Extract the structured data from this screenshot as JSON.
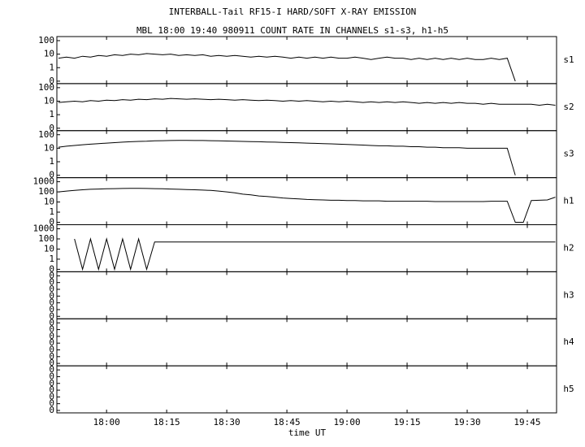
{
  "title": "INTERBALL-Tail RF15-I HARD/SOFT X-RAY EMISSION",
  "subtitle": "MBL 18:00 19:40 980911  COUNT RATE IN CHANNELS s1-s3, h1-h5",
  "xlabel": "time UT",
  "xlim": [
    1067.6,
    1192.3
  ],
  "xticks": [
    {
      "value": 1080,
      "label": "18:00"
    },
    {
      "value": 1095,
      "label": "18:15"
    },
    {
      "value": 1110,
      "label": "18:30"
    },
    {
      "value": 1125,
      "label": "18:45"
    },
    {
      "value": 1140,
      "label": "19:00"
    },
    {
      "value": 1155,
      "label": "19:15"
    },
    {
      "value": 1170,
      "label": "19:30"
    },
    {
      "value": 1185,
      "label": "19:45"
    }
  ],
  "chart_data": [
    {
      "type": "line",
      "label": "s1",
      "scale": "log",
      "ylim": [
        0,
        100
      ],
      "yticks": [
        0,
        1,
        10,
        100
      ],
      "x": [
        1068,
        1070,
        1072,
        1074,
        1076,
        1078,
        1080,
        1082,
        1084,
        1086,
        1088,
        1090,
        1092,
        1094,
        1096,
        1098,
        1100,
        1102,
        1104,
        1106,
        1108,
        1110,
        1112,
        1114,
        1116,
        1118,
        1120,
        1122,
        1124,
        1126,
        1128,
        1130,
        1132,
        1134,
        1136,
        1138,
        1140,
        1142,
        1144,
        1146,
        1148,
        1150,
        1152,
        1154,
        1156,
        1158,
        1160,
        1162,
        1164,
        1166,
        1168,
        1170,
        1172,
        1174,
        1176,
        1178,
        1180,
        1182,
        1184,
        1186,
        1188,
        1190,
        1192
      ],
      "values": [
        5,
        6,
        5,
        7,
        6,
        8,
        7,
        9,
        8,
        10,
        9,
        11,
        10,
        9,
        10,
        8,
        9,
        8,
        9,
        7,
        8,
        7,
        8,
        7,
        6,
        7,
        6,
        7,
        6,
        5,
        6,
        5,
        6,
        5,
        6,
        5,
        5,
        6,
        5,
        4,
        5,
        6,
        5,
        5,
        4,
        5,
        4,
        5,
        4,
        5,
        4,
        5,
        4,
        4,
        5,
        4,
        5,
        0,
        null,
        null,
        null,
        null,
        null
      ]
    },
    {
      "type": "line",
      "label": "s2",
      "scale": "log",
      "ylim": [
        0,
        100
      ],
      "yticks": [
        0,
        1,
        10,
        100
      ],
      "x": [
        1068,
        1070,
        1072,
        1074,
        1076,
        1078,
        1080,
        1082,
        1084,
        1086,
        1088,
        1090,
        1092,
        1094,
        1096,
        1098,
        1100,
        1102,
        1104,
        1106,
        1108,
        1110,
        1112,
        1114,
        1116,
        1118,
        1120,
        1122,
        1124,
        1126,
        1128,
        1130,
        1132,
        1134,
        1136,
        1138,
        1140,
        1142,
        1144,
        1146,
        1148,
        1150,
        1152,
        1154,
        1156,
        1158,
        1160,
        1162,
        1164,
        1166,
        1168,
        1170,
        1172,
        1174,
        1176,
        1178,
        1180,
        1182,
        1184,
        1186,
        1188,
        1190,
        1192
      ],
      "values": [
        8,
        9,
        10,
        9,
        11,
        10,
        12,
        11,
        13,
        12,
        14,
        13,
        15,
        14,
        16,
        15,
        14,
        15,
        14,
        13,
        14,
        13,
        12,
        13,
        12,
        11,
        12,
        11,
        10,
        11,
        10,
        11,
        10,
        9,
        10,
        9,
        10,
        9,
        8,
        9,
        8,
        9,
        8,
        9,
        8,
        7,
        8,
        7,
        8,
        7,
        8,
        7,
        7,
        6,
        7,
        6,
        6,
        6,
        6,
        6,
        5,
        6,
        5
      ]
    },
    {
      "type": "line",
      "label": "s3",
      "scale": "log",
      "ylim": [
        0,
        100
      ],
      "yticks": [
        0,
        1,
        10,
        100
      ],
      "x": [
        1068,
        1070,
        1072,
        1074,
        1076,
        1078,
        1080,
        1082,
        1084,
        1086,
        1088,
        1090,
        1092,
        1094,
        1096,
        1098,
        1100,
        1102,
        1104,
        1106,
        1108,
        1110,
        1112,
        1114,
        1116,
        1118,
        1120,
        1122,
        1124,
        1126,
        1128,
        1130,
        1132,
        1134,
        1136,
        1138,
        1140,
        1142,
        1144,
        1146,
        1148,
        1150,
        1152,
        1154,
        1156,
        1158,
        1160,
        1162,
        1164,
        1166,
        1168,
        1170,
        1172,
        1174,
        1176,
        1178,
        1180,
        1182,
        1184,
        1186,
        1188,
        1190,
        1192
      ],
      "values": [
        12,
        14,
        16,
        18,
        20,
        22,
        24,
        26,
        28,
        30,
        32,
        33,
        35,
        36,
        37,
        38,
        38,
        37,
        37,
        36,
        35,
        34,
        33,
        32,
        31,
        30,
        29,
        28,
        27,
        26,
        25,
        24,
        23,
        22,
        21,
        20,
        19,
        18,
        17,
        16,
        15,
        15,
        14,
        14,
        13,
        13,
        12,
        12,
        11,
        11,
        11,
        10,
        10,
        10,
        10,
        10,
        10,
        0,
        null,
        null,
        null,
        null,
        null
      ]
    },
    {
      "type": "line",
      "label": "h1",
      "scale": "log",
      "ylim": [
        0,
        1000
      ],
      "yticks": [
        0,
        1,
        10,
        100,
        1000
      ],
      "x": [
        1068,
        1070,
        1072,
        1074,
        1076,
        1078,
        1080,
        1082,
        1084,
        1086,
        1088,
        1090,
        1092,
        1094,
        1096,
        1098,
        1100,
        1102,
        1104,
        1106,
        1108,
        1110,
        1112,
        1114,
        1116,
        1118,
        1120,
        1122,
        1124,
        1126,
        1128,
        1130,
        1132,
        1134,
        1136,
        1138,
        1140,
        1142,
        1144,
        1146,
        1148,
        1150,
        1152,
        1154,
        1156,
        1158,
        1160,
        1162,
        1164,
        1166,
        1168,
        1170,
        1172,
        1174,
        1176,
        1178,
        1180,
        1182,
        1184,
        1186,
        1188,
        1190,
        1192
      ],
      "values": [
        100,
        120,
        140,
        160,
        180,
        190,
        200,
        210,
        215,
        220,
        220,
        215,
        210,
        200,
        190,
        180,
        170,
        160,
        150,
        140,
        120,
        100,
        80,
        60,
        50,
        40,
        35,
        30,
        25,
        22,
        20,
        18,
        17,
        16,
        15,
        15,
        14,
        14,
        13,
        13,
        13,
        12,
        12,
        12,
        12,
        12,
        12,
        11,
        11,
        11,
        11,
        11,
        11,
        11,
        12,
        12,
        12,
        0,
        0,
        14,
        15,
        16,
        30
      ]
    },
    {
      "type": "line",
      "label": "h2",
      "scale": "log",
      "ylim": [
        0,
        1000
      ],
      "yticks": [
        0,
        1,
        10,
        100,
        1000
      ],
      "x": [
        1068,
        1070,
        1072,
        1074,
        1076,
        1078,
        1080,
        1082,
        1084,
        1086,
        1088,
        1090,
        1092,
        1094,
        1096,
        1098,
        1100,
        1102,
        1104,
        1106,
        1108,
        1110,
        1112,
        1114,
        1116,
        1118,
        1120,
        1122,
        1124,
        1126,
        1128,
        1130,
        1132,
        1134,
        1136,
        1138,
        1140,
        1142,
        1144,
        1146,
        1148,
        1150,
        1152,
        1154,
        1156,
        1158,
        1160,
        1162,
        1164,
        1166,
        1168,
        1170,
        1172,
        1174,
        1176,
        1178,
        1180,
        1182,
        1184,
        1186,
        1188,
        1190,
        1192
      ],
      "values": [
        null,
        null,
        100,
        0,
        100,
        0,
        100,
        0,
        100,
        0,
        100,
        0,
        50,
        50,
        50,
        50,
        50,
        50,
        50,
        50,
        50,
        50,
        50,
        50,
        50,
        50,
        50,
        50,
        50,
        50,
        50,
        50,
        50,
        50,
        50,
        50,
        50,
        50,
        50,
        50,
        50,
        50,
        50,
        50,
        50,
        50,
        50,
        50,
        50,
        50,
        50,
        50,
        50,
        50,
        50,
        50,
        50,
        50,
        50,
        50,
        50,
        50,
        50
      ]
    },
    {
      "type": "line",
      "label": "h3",
      "scale": "linear",
      "ylim": [
        0,
        0.6
      ],
      "yticks": [
        {
          "value": 0,
          "label": "0"
        },
        {
          "value": 0.1,
          "label": "0"
        },
        {
          "value": 0.2,
          "label": "0"
        },
        {
          "value": 0.3,
          "label": "0"
        },
        {
          "value": 0.4,
          "label": "0"
        },
        {
          "value": 0.5,
          "label": "0"
        },
        {
          "value": 0.6,
          "label": "0"
        }
      ]
    },
    {
      "type": "line",
      "label": "h4",
      "scale": "linear",
      "ylim": [
        0,
        0.6
      ],
      "yticks": [
        {
          "value": 0,
          "label": "0"
        },
        {
          "value": 0.1,
          "label": "0"
        },
        {
          "value": 0.2,
          "label": "0"
        },
        {
          "value": 0.3,
          "label": "0"
        },
        {
          "value": 0.4,
          "label": "0"
        },
        {
          "value": 0.5,
          "label": "0"
        },
        {
          "value": 0.6,
          "label": "0"
        }
      ]
    },
    {
      "type": "line",
      "label": "h5",
      "scale": "linear",
      "ylim": [
        0,
        0.6
      ],
      "yticks": [
        {
          "value": 0,
          "label": "0"
        },
        {
          "value": 0.1,
          "label": "0"
        },
        {
          "value": 0.2,
          "label": "0"
        },
        {
          "value": 0.3,
          "label": "0"
        },
        {
          "value": 0.4,
          "label": "0"
        },
        {
          "value": 0.5,
          "label": "0"
        },
        {
          "value": 0.6,
          "label": "0"
        }
      ]
    }
  ]
}
